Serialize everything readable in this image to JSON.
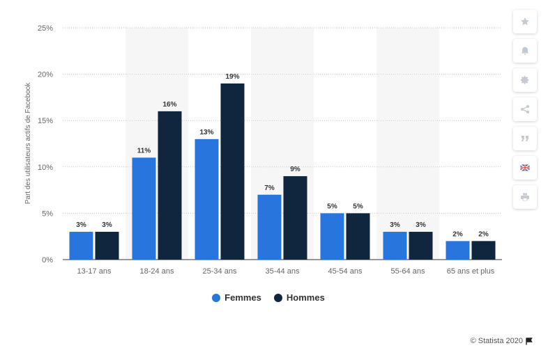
{
  "chart_data": {
    "type": "bar",
    "categories": [
      "13-17 ans",
      "18-24 ans",
      "25-34 ans",
      "35-44 ans",
      "45-54 ans",
      "55-64 ans",
      "65 ans et plus"
    ],
    "series": [
      {
        "name": "Femmes",
        "color": "#2876dd",
        "values": [
          3,
          11,
          13,
          7,
          5,
          3,
          2
        ]
      },
      {
        "name": "Hommes",
        "color": "#10263f",
        "values": [
          3,
          16,
          19,
          9,
          5,
          3,
          2
        ]
      }
    ],
    "ylabel": "Part des utilisateurs actifs de Facebook",
    "ylim": [
      0,
      25
    ],
    "yticks": [
      "0%",
      "5%",
      "10%",
      "15%",
      "20%",
      "25%"
    ],
    "value_suffix": "%",
    "grid": true,
    "legend_position": "bottom-center"
  },
  "legend": {
    "femmes": "Femmes",
    "hommes": "Hommes"
  },
  "toolbar": {
    "icons": [
      "star-icon",
      "bell-icon",
      "gear-icon",
      "share-icon",
      "quote-icon",
      "flag-icon",
      "print-icon"
    ]
  },
  "credits": {
    "text": "© Statista 2020"
  },
  "colors": {
    "femmes": "#2876dd",
    "hommes": "#10263f",
    "band": "#f6f6f6",
    "grid": "#c8c8c8"
  }
}
